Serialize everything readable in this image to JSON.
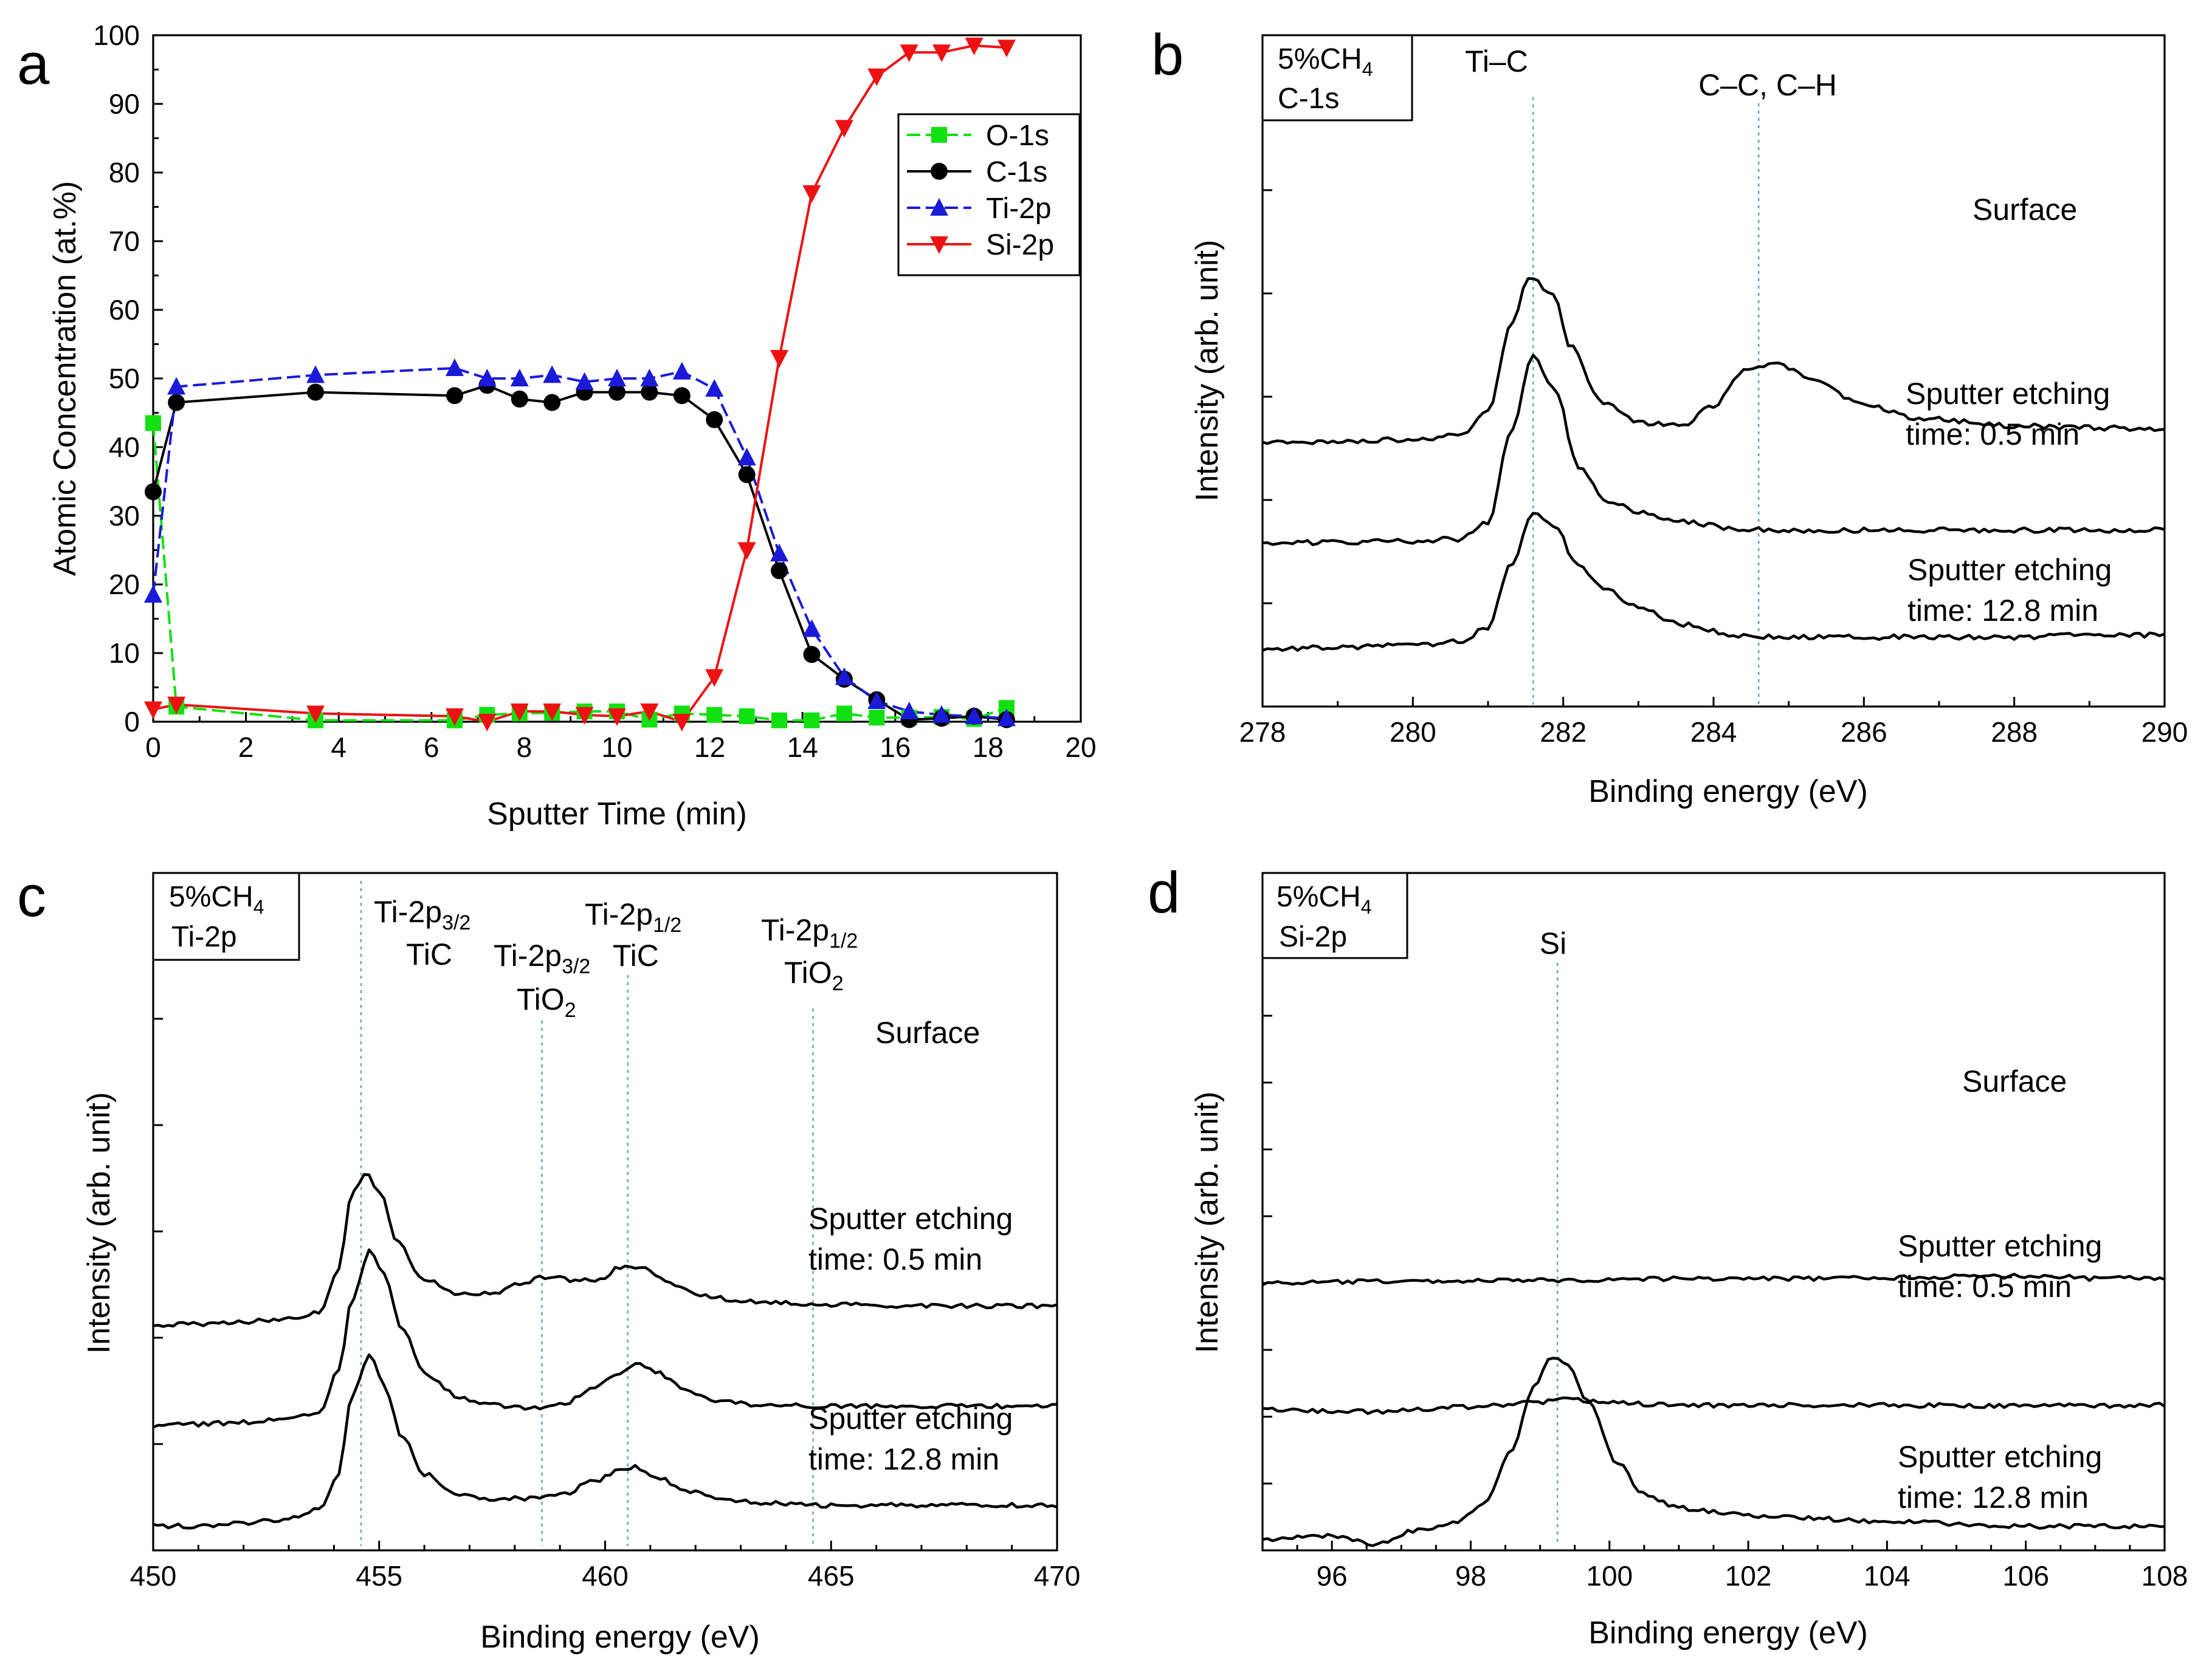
{
  "chart_data": [
    {
      "id": "a",
      "type": "line",
      "panel_label": "a",
      "xlabel": "Sputter Time (min)",
      "ylabel": "Atomic  Concentration (at.%)",
      "xlim": [
        0,
        20
      ],
      "ylim": [
        0,
        100
      ],
      "xticks": [
        0,
        2,
        4,
        6,
        8,
        10,
        12,
        14,
        16,
        18,
        20
      ],
      "yticks": [
        0,
        10,
        20,
        30,
        40,
        50,
        60,
        70,
        80,
        90,
        100
      ],
      "legend": "top-right",
      "series": [
        {
          "name": "O-1s",
          "color": "#11e011",
          "marker": "square",
          "dashed": true,
          "x": [
            0,
            0.5,
            3.5,
            6.5,
            7.2,
            7.9,
            8.6,
            9.3,
            10.0,
            10.7,
            11.4,
            12.1,
            12.8,
            13.5,
            14.2,
            14.9,
            15.6,
            16.3,
            17.0,
            17.7,
            18.4
          ],
          "y": [
            43.5,
            2.2,
            0.2,
            0.2,
            1.0,
            1.2,
            1.3,
            1.5,
            1.5,
            0.3,
            1.2,
            1.0,
            0.8,
            0.2,
            0.2,
            1.2,
            0.6,
            0.6,
            0.7,
            0.4,
            2.0
          ]
        },
        {
          "name": "C-1s",
          "color": "#000000",
          "marker": "circle",
          "dashed": false,
          "x": [
            0,
            0.5,
            3.5,
            6.5,
            7.2,
            7.9,
            8.6,
            9.3,
            10.0,
            10.7,
            11.4,
            12.1,
            12.8,
            13.5,
            14.2,
            14.9,
            15.6,
            16.3,
            17.0,
            17.7,
            18.4
          ],
          "y": [
            33.5,
            46.5,
            48.0,
            47.5,
            49.0,
            47.0,
            46.5,
            48.0,
            48.0,
            48.0,
            47.5,
            44.0,
            36.0,
            22.0,
            9.8,
            6.2,
            3.2,
            0.3,
            0.5,
            0.8,
            0.3
          ]
        },
        {
          "name": "Ti-2p",
          "color": "#1a1ad9",
          "marker": "triangle-up",
          "dashed": true,
          "x": [
            0,
            0.5,
            3.5,
            6.5,
            7.2,
            7.9,
            8.6,
            9.3,
            10.0,
            10.7,
            11.4,
            12.1,
            12.8,
            13.5,
            14.2,
            14.9,
            15.6,
            16.3,
            17.0,
            17.7,
            18.4
          ],
          "y": [
            18.5,
            48.8,
            50.5,
            51.5,
            50.0,
            50.0,
            50.5,
            49.5,
            50.0,
            50.0,
            51.0,
            48.5,
            38.5,
            24.5,
            13.5,
            6.5,
            3.0,
            1.5,
            1.0,
            0.8,
            0.5
          ]
        },
        {
          "name": "Si-2p",
          "color": "#ee1111",
          "marker": "triangle-down",
          "dashed": false,
          "x": [
            0,
            0.5,
            3.5,
            6.5,
            7.2,
            7.9,
            8.6,
            9.3,
            10.0,
            10.7,
            11.4,
            12.1,
            12.8,
            13.5,
            14.2,
            14.9,
            15.6,
            16.3,
            17.0,
            17.7,
            18.4
          ],
          "y": [
            1.8,
            2.5,
            1.2,
            0.8,
            0.0,
            1.5,
            1.5,
            1.0,
            0.8,
            1.5,
            0.0,
            6.5,
            25.0,
            53.0,
            77.0,
            86.5,
            94.0,
            97.5,
            97.5,
            98.5,
            98.2
          ]
        }
      ]
    },
    {
      "id": "b",
      "type": "line",
      "panel_label": "b",
      "xlabel": "Binding energy (eV)",
      "ylabel": "Intensity (arb. unit)",
      "xlim": [
        278,
        290
      ],
      "xticks": [
        278,
        280,
        282,
        284,
        286,
        288,
        290
      ],
      "info_box": [
        "5%CH",
        "4",
        "C-1s"
      ],
      "reference_lines": [
        281.6,
        284.6
      ],
      "peak_labels": [
        "Ti–C",
        "C–C, C–H"
      ],
      "curve_labels": [
        [
          "Surface"
        ],
        [
          "Sputter etching",
          "time: 0.5 min"
        ],
        [
          "Sputter etching",
          "time: 12.8 min"
        ]
      ],
      "series": [
        {
          "name": "Surface",
          "offset": 3,
          "x": [
            278,
            279,
            280,
            280.6,
            281.0,
            281.3,
            281.55,
            281.85,
            282.1,
            282.5,
            283.0,
            283.6,
            284.0,
            284.4,
            284.8,
            285.3,
            286.0,
            286.8,
            288.0,
            289.0,
            290
          ],
          "y": [
            0.0,
            0.02,
            0.05,
            0.1,
            0.45,
            1.7,
            2.4,
            2.2,
            1.4,
            0.6,
            0.3,
            0.25,
            0.55,
            1.05,
            1.15,
            0.95,
            0.55,
            0.35,
            0.25,
            0.22,
            0.2
          ]
        },
        {
          "name": "Sputter etching time: 0.5 min",
          "offset": 1.55,
          "x": [
            278,
            279,
            280,
            280.6,
            281.0,
            281.3,
            281.6,
            281.9,
            282.2,
            282.6,
            283.0,
            283.6,
            284.3,
            285,
            286,
            287,
            288,
            289,
            290
          ],
          "y": [
            0.0,
            0.0,
            0.02,
            0.05,
            0.3,
            1.6,
            2.7,
            2.2,
            1.1,
            0.6,
            0.45,
            0.3,
            0.2,
            0.17,
            0.18,
            0.18,
            0.18,
            0.18,
            0.18
          ]
        },
        {
          "name": "Sputter etching time: 12.8 min",
          "offset": 0,
          "x": [
            278,
            279,
            280,
            280.6,
            281.0,
            281.3,
            281.6,
            281.9,
            282.2,
            282.6,
            283.0,
            283.6,
            284.3,
            285,
            286,
            287,
            288,
            289,
            290
          ],
          "y": [
            0.0,
            0.02,
            0.05,
            0.1,
            0.3,
            1.2,
            2.0,
            1.75,
            1.2,
            0.85,
            0.6,
            0.35,
            0.2,
            0.17,
            0.17,
            0.17,
            0.17,
            0.2,
            0.2
          ]
        }
      ]
    },
    {
      "id": "c",
      "type": "line",
      "panel_label": "c",
      "xlabel": "Binding energy (eV)",
      "ylabel": "Intensity (arb. unit)",
      "xlim": [
        450,
        470
      ],
      "xticks": [
        450,
        455,
        460,
        465,
        470
      ],
      "info_box": [
        "5%CH",
        "4",
        "Ti-2p"
      ],
      "reference_lines": [
        454.6,
        458.6,
        460.5,
        464.6
      ],
      "peak_labels": [
        {
          "main": "Ti-2p",
          "sub": "3/2",
          "line2": "TiC"
        },
        {
          "main": "Ti-2p",
          "sub": "3/2",
          "line2": "TiO",
          "line2_sub": "2"
        },
        {
          "main": "Ti-2p",
          "sub": "1/2",
          "line2": "TiC"
        },
        {
          "main": "Ti-2p",
          "sub": "1/2",
          "line2": "TiO",
          "line2_sub": "2"
        }
      ],
      "curve_labels": [
        [
          "Surface"
        ],
        [
          "Sputter etching",
          "time: 0.5 min"
        ],
        [
          "Sputter etching",
          "time: 12.8 min"
        ]
      ],
      "series": [
        {
          "name": "Surface",
          "offset": 2.9,
          "x": [
            450,
            451,
            452,
            453,
            453.7,
            454.1,
            454.4,
            454.7,
            455.0,
            455.4,
            456.0,
            456.8,
            457.5,
            458.1,
            458.7,
            459.3,
            459.8,
            460.4,
            460.8,
            461.3,
            462.0,
            463.0,
            465.0,
            467.0,
            470
          ],
          "y": [
            0.0,
            0.02,
            0.05,
            0.1,
            0.2,
            0.8,
            1.9,
            2.2,
            1.95,
            1.2,
            0.65,
            0.45,
            0.45,
            0.6,
            0.7,
            0.65,
            0.65,
            0.85,
            0.85,
            0.65,
            0.45,
            0.35,
            0.3,
            0.28,
            0.28
          ]
        },
        {
          "name": "Sputter etching time: 0.5 min",
          "offset": 1.45,
          "x": [
            450,
            451,
            452,
            453,
            453.7,
            454.1,
            454.4,
            454.8,
            455.1,
            455.5,
            456.0,
            456.8,
            457.5,
            458.3,
            459.0,
            459.8,
            460.3,
            460.7,
            461.2,
            461.8,
            462.5,
            463.5,
            465.0,
            467.0,
            470
          ],
          "y": [
            0.0,
            0.02,
            0.05,
            0.1,
            0.2,
            0.8,
            1.8,
            2.55,
            2.2,
            1.4,
            0.75,
            0.4,
            0.3,
            0.25,
            0.3,
            0.55,
            0.75,
            0.9,
            0.75,
            0.5,
            0.35,
            0.3,
            0.28,
            0.28,
            0.28
          ]
        },
        {
          "name": "Sputter etching time: 12.8 min",
          "offset": 0,
          "x": [
            450,
            451,
            452,
            453,
            453.7,
            454.1,
            454.4,
            454.8,
            455.1,
            455.5,
            456.0,
            456.8,
            457.5,
            458.3,
            459.0,
            459.8,
            460.3,
            460.7,
            461.2,
            461.8,
            462.5,
            463.5,
            465.0,
            467.0,
            470
          ],
          "y": [
            0.0,
            0.0,
            0.05,
            0.1,
            0.25,
            0.75,
            1.9,
            2.5,
            2.05,
            1.3,
            0.75,
            0.45,
            0.4,
            0.4,
            0.45,
            0.65,
            0.8,
            0.85,
            0.7,
            0.5,
            0.4,
            0.33,
            0.3,
            0.3,
            0.3
          ]
        }
      ]
    },
    {
      "id": "d",
      "type": "line",
      "panel_label": "d",
      "xlabel": "Binding energy (eV)",
      "ylabel": "Intensity (arb. unit)",
      "xlim": [
        95,
        108
      ],
      "xticks": [
        96,
        98,
        100,
        102,
        104,
        106,
        108
      ],
      "info_box": [
        "5%CH",
        "4",
        "Si-2p"
      ],
      "reference_lines": [
        99.25
      ],
      "peak_labels": [
        "Si"
      ],
      "curve_labels": [
        [
          "Surface"
        ],
        [
          "Sputter etching",
          "time: 0.5 min"
        ],
        [
          "Sputter etching",
          "time: 12.8 min"
        ]
      ],
      "series": [
        {
          "name": "Surface",
          "offset": 2.8,
          "x": [
            95,
            97,
            99,
            101,
            103,
            105,
            106.3,
            107,
            108
          ],
          "y": [
            0.0,
            0.02,
            0.03,
            0.05,
            0.05,
            0.07,
            0.08,
            0.05,
            0.06
          ]
        },
        {
          "name": "Sputter etching time: 0.5 min",
          "offset": 1.42,
          "x": [
            95,
            96.5,
            98,
            99.0,
            99.3,
            100,
            101,
            102.5,
            104,
            106,
            108
          ],
          "y": [
            0.0,
            -0.02,
            0.03,
            0.08,
            0.12,
            0.08,
            0.05,
            0.05,
            0.05,
            0.04,
            0.05
          ]
        },
        {
          "name": "Sputter etching time: 12.8 min",
          "offset": 0,
          "x": [
            95,
            96,
            96.6,
            97.2,
            97.8,
            98.2,
            98.6,
            98.9,
            99.15,
            99.4,
            99.7,
            100.1,
            100.5,
            101.0,
            101.6,
            102.5,
            104.0,
            106.0,
            108
          ],
          "y": [
            0.0,
            0.05,
            -0.05,
            0.1,
            0.2,
            0.4,
            1.0,
            1.65,
            2.0,
            1.9,
            1.5,
            0.85,
            0.5,
            0.35,
            0.3,
            0.25,
            0.2,
            0.15,
            0.15
          ]
        }
      ]
    }
  ]
}
